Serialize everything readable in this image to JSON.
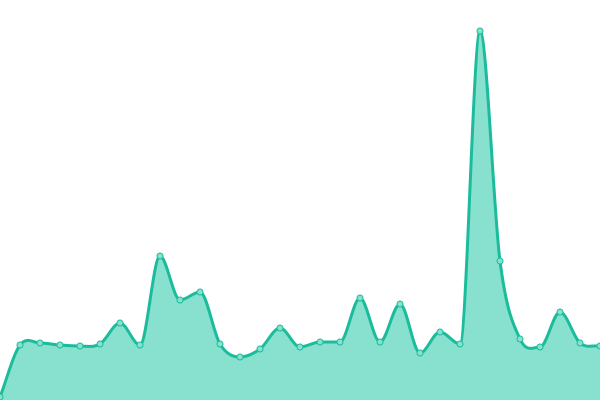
{
  "chart_data": {
    "type": "area",
    "title": "",
    "xlabel": "",
    "ylabel": "",
    "x": [
      0,
      1,
      2,
      3,
      4,
      5,
      6,
      7,
      8,
      9,
      10,
      11,
      12,
      13,
      14,
      15,
      16,
      17,
      18,
      19,
      20,
      21,
      22,
      23,
      24,
      25,
      26,
      27,
      28,
      29,
      30
    ],
    "values": [
      3,
      55,
      57,
      55,
      54,
      56,
      77,
      55,
      144,
      100,
      108,
      56,
      43,
      51,
      72,
      53,
      58,
      58,
      102,
      58,
      96,
      47,
      68,
      56,
      369,
      139,
      61,
      53,
      88,
      57,
      54
    ],
    "ylim": [
      0,
      400
    ],
    "axes_visible": false,
    "grid": false,
    "smooth": true,
    "colors": {
      "line": "#1abc9c",
      "fill": "#88e0cf",
      "marker": "#88e0cf"
    }
  }
}
